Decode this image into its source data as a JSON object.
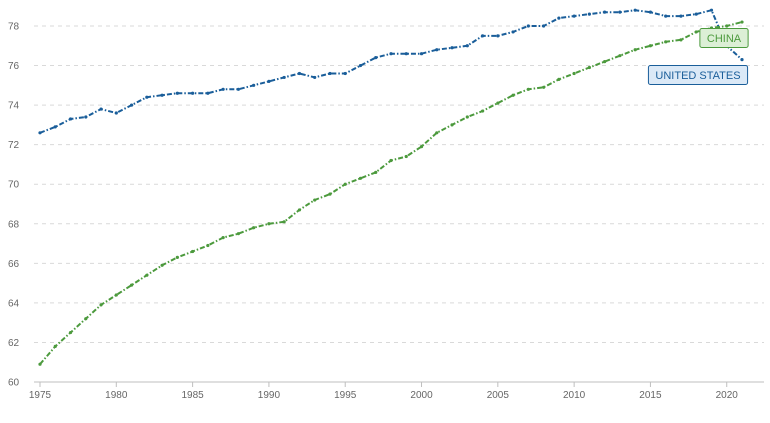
{
  "chart_data": {
    "type": "line",
    "title": "",
    "xlabel": "",
    "ylabel": "",
    "xlim": [
      1975,
      2021
    ],
    "ylim": [
      60,
      78
    ],
    "x_ticks": [
      1975,
      1980,
      1985,
      1990,
      1995,
      2000,
      2005,
      2010,
      2015,
      2020
    ],
    "y_ticks": [
      60,
      62,
      64,
      66,
      68,
      70,
      72,
      74,
      76,
      78
    ],
    "grid": "horizontal dashed",
    "legend": "none (inline labels at right end of lines)",
    "x": [
      1975,
      1976,
      1977,
      1978,
      1979,
      1980,
      1981,
      1982,
      1983,
      1984,
      1985,
      1986,
      1987,
      1988,
      1989,
      1990,
      1991,
      1992,
      1993,
      1994,
      1995,
      1996,
      1997,
      1998,
      1999,
      2000,
      2001,
      2002,
      2003,
      2004,
      2005,
      2006,
      2007,
      2008,
      2009,
      2010,
      2011,
      2012,
      2013,
      2014,
      2015,
      2016,
      2017,
      2018,
      2019,
      2020,
      2021
    ],
    "series": [
      {
        "name": "UNITED STATES",
        "color": "#1a5e9a",
        "label_bg": "#dbe9f7",
        "values": [
          72.6,
          72.9,
          73.3,
          73.4,
          73.8,
          73.6,
          74.0,
          74.4,
          74.5,
          74.6,
          74.6,
          74.6,
          74.8,
          74.8,
          75.0,
          75.2,
          75.4,
          75.6,
          75.4,
          75.6,
          75.6,
          76.0,
          76.4,
          76.6,
          76.6,
          76.6,
          76.8,
          76.9,
          77.0,
          77.5,
          77.5,
          77.7,
          78.0,
          78.0,
          78.4,
          78.5,
          78.6,
          78.7,
          78.7,
          78.8,
          78.7,
          78.5,
          78.5,
          78.6,
          78.8,
          77.0,
          76.3
        ]
      },
      {
        "name": "CHINA",
        "color": "#4c9a3d",
        "label_bg": "#dcefd6",
        "values": [
          60.9,
          61.8,
          62.5,
          63.2,
          63.9,
          64.4,
          64.9,
          65.4,
          65.9,
          66.3,
          66.6,
          66.9,
          67.3,
          67.5,
          67.8,
          68.0,
          68.1,
          68.7,
          69.2,
          69.5,
          70.0,
          70.3,
          70.6,
          71.2,
          71.4,
          71.9,
          72.6,
          73.0,
          73.4,
          73.7,
          74.1,
          74.5,
          74.8,
          74.9,
          75.3,
          75.6,
          75.9,
          76.2,
          76.5,
          76.8,
          77.0,
          77.2,
          77.3,
          77.7,
          77.9,
          78.0,
          78.2
        ]
      }
    ]
  }
}
